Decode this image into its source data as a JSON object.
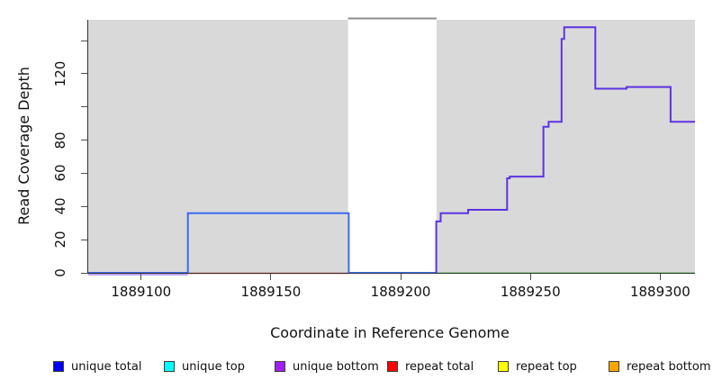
{
  "chart_data": {
    "type": "line",
    "title": "",
    "xlabel": "Coordinate in Reference Genome",
    "ylabel": "Read Coverage Depth",
    "xlim": [
      1889079.6,
      1889313.4
    ],
    "ylim": [
      0,
      152.5
    ],
    "grid": false,
    "plot_bg_color": "#d9d9d9",
    "x_ticks": [
      {
        "value": 1889100,
        "label": "1889100"
      },
      {
        "value": 1889150,
        "label": "1889150"
      },
      {
        "value": 1889200,
        "label": "1889200"
      },
      {
        "value": 1889250,
        "label": "1889250"
      },
      {
        "value": 1889300,
        "label": "1889300"
      }
    ],
    "y_ticks": [
      {
        "value": 0,
        "label": "0"
      },
      {
        "value": 20,
        "label": "20"
      },
      {
        "value": 40,
        "label": "40"
      },
      {
        "value": 60,
        "label": "60"
      },
      {
        "value": 80,
        "label": "80"
      },
      {
        "value": 100,
        "label": ""
      },
      {
        "value": 120,
        "label": "120"
      },
      {
        "value": 140,
        "label": ""
      }
    ],
    "gap_region": {
      "x0": 1889179.7,
      "x1": 1889213.8,
      "fill": "#ffffff",
      "top_line_color": "#8c8c8c"
    },
    "series": [
      {
        "name": "unique-bottom-baseline-left",
        "color": "#7a4de8",
        "width": 1,
        "offset_y": 2,
        "points": [
          [
            1889079.6,
            0
          ],
          [
            1889118,
            0
          ]
        ]
      },
      {
        "name": "repeat-total-baseline",
        "color": "#e04545",
        "width": 1.5,
        "offset_y": 0.5,
        "points": [
          [
            1889118,
            0
          ],
          [
            1889180,
            0
          ]
        ]
      },
      {
        "name": "baseline-right-green",
        "color": "#7dc87d",
        "width": 1.5,
        "offset_y": 0,
        "points": [
          [
            1889213.8,
            0
          ],
          [
            1889313.4,
            0
          ]
        ]
      },
      {
        "name": "unique-total-left-block",
        "color": "#3b6cf0",
        "width": 2,
        "offset_y": 0,
        "points": [
          [
            1889079.6,
            0
          ],
          [
            1889118,
            0
          ],
          [
            1889118,
            36
          ],
          [
            1889180,
            36
          ],
          [
            1889180,
            0
          ],
          [
            1889213.7,
            0
          ]
        ]
      },
      {
        "name": "unique-bottom-right-block",
        "color": "#5d33e3",
        "width": 2,
        "offset_y": 0,
        "points": [
          [
            1889213.7,
            0
          ],
          [
            1889213.7,
            31
          ],
          [
            1889215.4,
            31
          ],
          [
            1889215.4,
            36
          ],
          [
            1889226,
            36
          ],
          [
            1889226,
            38
          ],
          [
            1889241,
            38
          ],
          [
            1889241,
            57
          ],
          [
            1889242,
            57
          ],
          [
            1889242,
            58
          ],
          [
            1889255,
            58
          ],
          [
            1889255,
            88
          ],
          [
            1889257,
            88
          ],
          [
            1889257,
            91
          ],
          [
            1889262,
            91
          ],
          [
            1889262,
            141
          ],
          [
            1889263,
            141
          ],
          [
            1889263,
            148
          ],
          [
            1889275,
            148
          ],
          [
            1889275,
            111
          ],
          [
            1889287,
            111
          ],
          [
            1889287,
            112
          ],
          [
            1889304,
            112
          ],
          [
            1889304,
            91
          ],
          [
            1889313.4,
            91
          ]
        ]
      }
    ],
    "legend": [
      {
        "label": "unique total",
        "color": "#0000ff"
      },
      {
        "label": "unique top",
        "color": "#00ffff"
      },
      {
        "label": "unique bottom",
        "color": "#a020f0"
      },
      {
        "label": "repeat total",
        "color": "#ff0000"
      },
      {
        "label": "repeat top",
        "color": "#ffff00"
      },
      {
        "label": "repeat bottom",
        "color": "#ffa500"
      }
    ],
    "legend_position": "bottom"
  }
}
